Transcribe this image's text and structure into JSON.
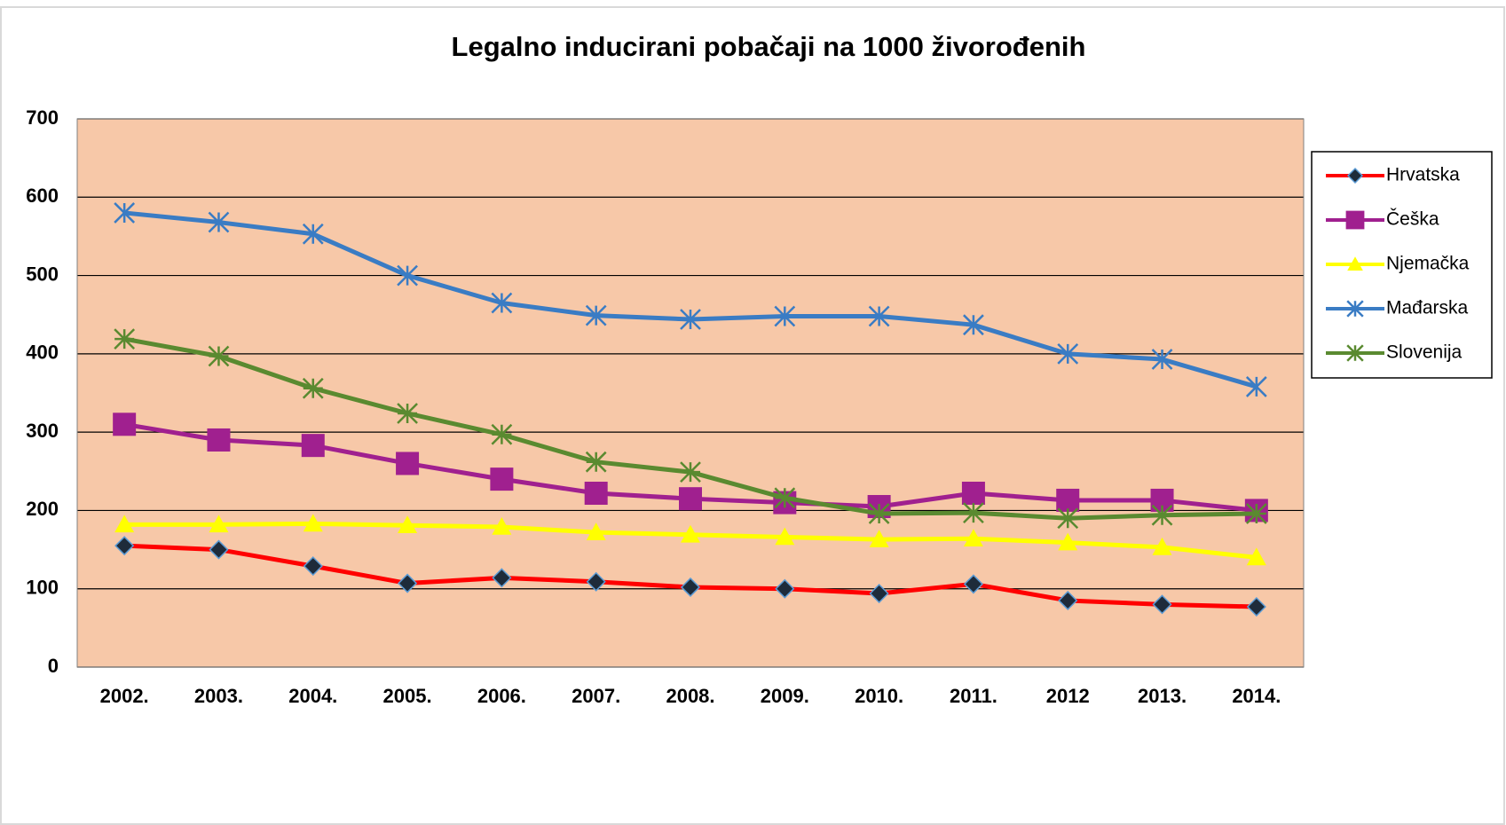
{
  "chart_data": {
    "type": "line",
    "title": "Legalno inducirani pobačaji na 1000 živorođenih",
    "categories": [
      "2002.",
      "2003.",
      "2004.",
      "2005.",
      "2006.",
      "2007.",
      "2008.",
      "2009.",
      "2010.",
      "2011.",
      "2012",
      "2013.",
      "2014."
    ],
    "series": [
      {
        "name": "Hrvatska",
        "color": "#ff0000",
        "marker": "diamond",
        "values": [
          155,
          150,
          129,
          107,
          114,
          109,
          102,
          100,
          94,
          106,
          85,
          80,
          77
        ]
      },
      {
        "name": "Češka",
        "color": "#a0208f",
        "marker": "square",
        "values": [
          310,
          290,
          283,
          260,
          240,
          222,
          215,
          210,
          205,
          222,
          213,
          213,
          200
        ]
      },
      {
        "name": "Njemačka",
        "color": "#ffff00",
        "marker": "triangle",
        "values": [
          182,
          182,
          183,
          181,
          179,
          172,
          169,
          166,
          163,
          164,
          159,
          153,
          140
        ]
      },
      {
        "name": "Mađarska",
        "color": "#3a7cc4",
        "marker": "asterisk",
        "values": [
          580,
          568,
          553,
          500,
          465,
          449,
          444,
          448,
          448,
          437,
          400,
          393,
          358
        ]
      },
      {
        "name": "Slovenija",
        "color": "#5a8a30",
        "marker": "star",
        "values": [
          419,
          397,
          356,
          324,
          297,
          262,
          249,
          216,
          196,
          197,
          190,
          194,
          196
        ]
      }
    ],
    "ylim": [
      0,
      700
    ],
    "yticks": [
      0,
      100,
      200,
      300,
      400,
      500,
      600,
      700
    ],
    "grid": true,
    "legend": "right",
    "plot_background": "#f7c8a8"
  }
}
